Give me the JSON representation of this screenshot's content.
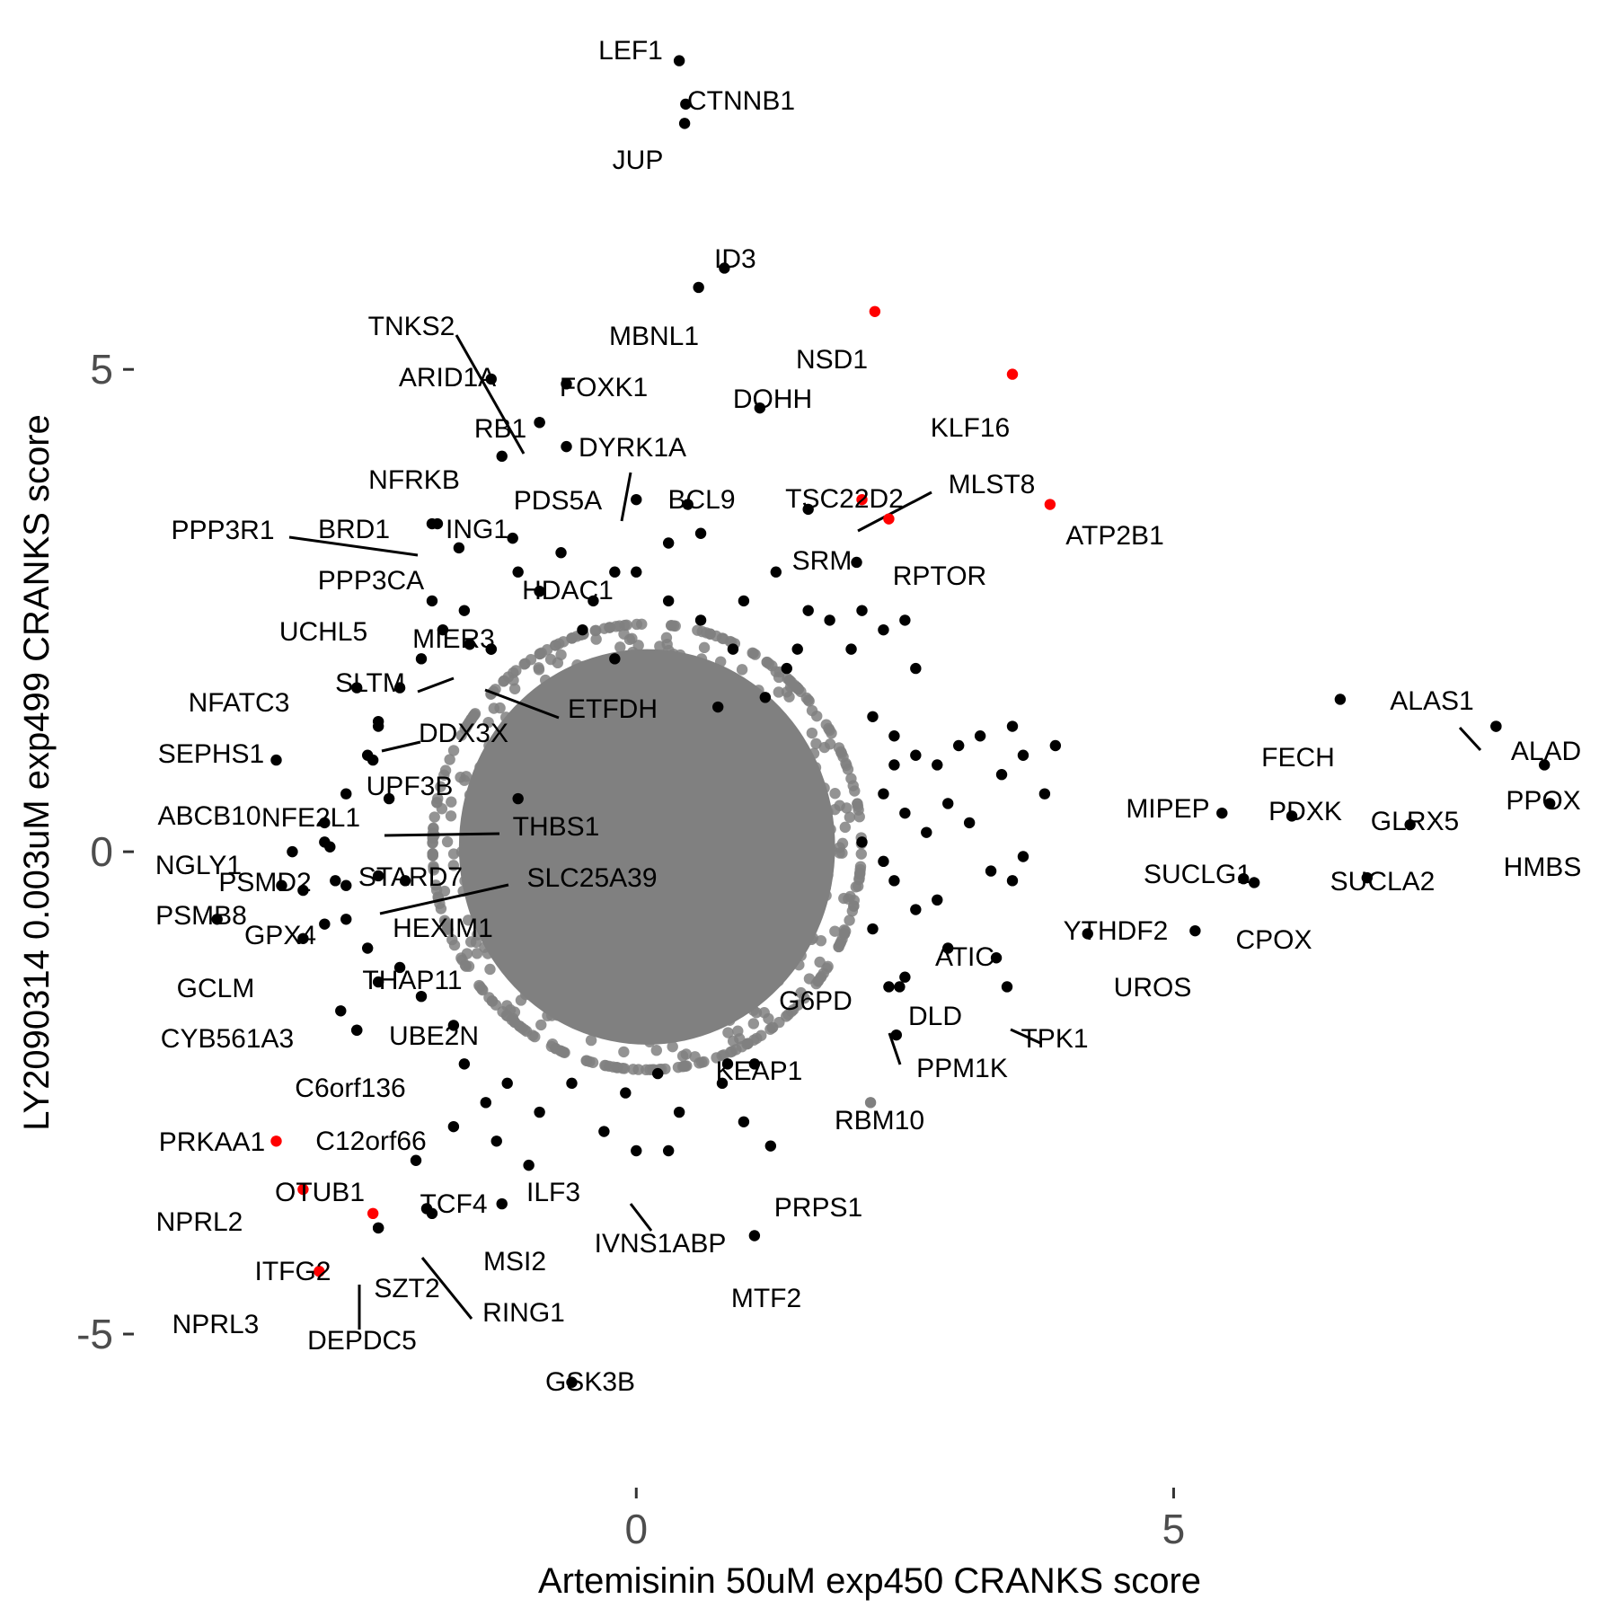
{
  "chart_data": {
    "type": "scatter",
    "xlabel": "Artemisinin 50uM exp450 CRANKS score",
    "ylabel": "LY2090314 0.003uM exp499 CRANKS score",
    "xlim": [
      -4.75,
      9.0
    ],
    "ylim": [
      -6.35,
      8.55
    ],
    "xticks": [
      {
        "value": 0,
        "label": "0"
      },
      {
        "value": 5,
        "label": "5"
      }
    ],
    "yticks": [
      {
        "value": -5,
        "label": "-5"
      },
      {
        "value": 0,
        "label": "0"
      },
      {
        "value": 5,
        "label": "5"
      }
    ],
    "grid": false,
    "colors": {
      "background": "#808080",
      "significant": "#000000",
      "highlight": "#ff0000"
    },
    "background_cloud": {
      "description_free": true,
      "center": [
        0.1,
        0.05
      ],
      "n": 1400
    },
    "labeled_points": [
      {
        "name": "LEF1",
        "x": 0.4,
        "y": 8.2,
        "color": "#000000"
      },
      {
        "name": "CTNNB1",
        "x": 0.46,
        "y": 7.75,
        "color": "#000000"
      },
      {
        "name": "JUP",
        "x": 0.45,
        "y": 7.55,
        "color": "#000000"
      },
      {
        "name": "ID3",
        "x": 0.82,
        "y": 6.05,
        "color": "#000000"
      },
      {
        "name": "MBNL1",
        "x": 0.58,
        "y": 5.85,
        "color": "#000000"
      },
      {
        "name": "NSD1",
        "x": 2.22,
        "y": 5.6,
        "color": "#ff0000"
      },
      {
        "name": "KLF16",
        "x": 3.5,
        "y": 4.95,
        "color": "#ff0000"
      },
      {
        "name": "DOHH",
        "x": 1.15,
        "y": 4.6,
        "color": "#000000"
      },
      {
        "name": "FOXK1",
        "x": -0.65,
        "y": 4.85,
        "color": "#000000"
      },
      {
        "name": "ARID1A",
        "x": -1.35,
        "y": 4.9,
        "color": "#000000"
      },
      {
        "name": "RB1",
        "x": -0.9,
        "y": 4.45,
        "color": "#000000"
      },
      {
        "name": "TNKS2",
        "x": -0.9,
        "y": 4.45,
        "color": "#000000"
      },
      {
        "name": "NFRKB",
        "x": -1.25,
        "y": 4.1,
        "color": "#000000"
      },
      {
        "name": "DYRK1A",
        "x": 0.0,
        "y": 3.65,
        "color": "#000000"
      },
      {
        "name": "PDS5A",
        "x": -0.65,
        "y": 4.2,
        "color": "#000000"
      },
      {
        "name": "BCL9",
        "x": 0.48,
        "y": 3.6,
        "color": "#000000"
      },
      {
        "name": "TSC22D2",
        "x": 1.6,
        "y": 3.55,
        "color": "#000000"
      },
      {
        "name": "MLST8",
        "x": 2.1,
        "y": 3.65,
        "color": "#ff0000"
      },
      {
        "name": "ATP2B1",
        "x": 3.85,
        "y": 3.6,
        "color": "#ff0000"
      },
      {
        "name": "RPTOR",
        "x": 2.35,
        "y": 3.45,
        "color": "#ff0000"
      },
      {
        "name": "SRM",
        "x": 2.05,
        "y": 3.0,
        "color": "#000000"
      },
      {
        "name": "ING1",
        "x": -1.15,
        "y": 3.25,
        "color": "#000000"
      },
      {
        "name": "BRD1",
        "x": -1.85,
        "y": 3.4,
        "color": "#000000"
      },
      {
        "name": "PPP3R1",
        "x": -1.9,
        "y": 3.4,
        "color": "#000000"
      },
      {
        "name": "PPP3CA",
        "x": -1.65,
        "y": 3.15,
        "color": "#000000"
      },
      {
        "name": "HDAC1",
        "x": -0.2,
        "y": 2.9,
        "color": "#000000"
      },
      {
        "name": "UCHL5",
        "x": -1.9,
        "y": 2.6,
        "color": "#000000"
      },
      {
        "name": "MIER3",
        "x": -1.35,
        "y": 2.1,
        "color": "#000000"
      },
      {
        "name": "SLTM",
        "x": -1.55,
        "y": 2.15,
        "color": "#000000"
      },
      {
        "name": "ETFDH",
        "x": -1.35,
        "y": 2.1,
        "color": "#000000"
      },
      {
        "name": "NFATC3",
        "x": -2.6,
        "y": 1.7,
        "color": "#000000"
      },
      {
        "name": "DDX3X",
        "x": -2.4,
        "y": 1.35,
        "color": "#000000"
      },
      {
        "name": "SEPHS1",
        "x": -3.35,
        "y": 0.95,
        "color": "#000000"
      },
      {
        "name": "UPF3B",
        "x": -2.45,
        "y": 0.95,
        "color": "#000000"
      },
      {
        "name": "NFE2L1",
        "x": -2.3,
        "y": 0.55,
        "color": "#000000"
      },
      {
        "name": "THBS1",
        "x": -1.1,
        "y": 0.55,
        "color": "#000000"
      },
      {
        "name": "ABCB10",
        "x": -2.9,
        "y": 0.3,
        "color": "#000000"
      },
      {
        "name": "NGLY1",
        "x": -2.85,
        "y": 0.05,
        "color": "#000000"
      },
      {
        "name": "PSMD2",
        "x": -3.3,
        "y": -0.35,
        "color": "#000000"
      },
      {
        "name": "STARD7",
        "x": -2.4,
        "y": -0.25,
        "color": "#000000"
      },
      {
        "name": "SLC25A39",
        "x": -2.15,
        "y": -0.3,
        "color": "#000000"
      },
      {
        "name": "PSMB8",
        "x": -3.9,
        "y": -0.7,
        "color": "#000000"
      },
      {
        "name": "GPX4",
        "x": -2.9,
        "y": -0.75,
        "color": "#000000"
      },
      {
        "name": "HEXIM1",
        "x": -2.7,
        "y": -0.35,
        "color": "#000000"
      },
      {
        "name": "GCLM",
        "x": -3.1,
        "y": -0.9,
        "color": "#000000"
      },
      {
        "name": "THAP11",
        "x": -2.4,
        "y": -1.35,
        "color": "#000000"
      },
      {
        "name": "CYB561A3",
        "x": -2.75,
        "y": -1.65,
        "color": "#000000"
      },
      {
        "name": "UBE2N",
        "x": -2.6,
        "y": -1.85,
        "color": "#000000"
      },
      {
        "name": "C6orf136",
        "x": -2.6,
        "y": -1.85,
        "color": "#000000"
      },
      {
        "name": "C12orf66",
        "x": -1.7,
        "y": -2.85,
        "color": "#000000"
      },
      {
        "name": "PRKAA1",
        "x": -3.35,
        "y": -3.0,
        "color": "#ff0000"
      },
      {
        "name": "OTUB1",
        "x": -2.05,
        "y": -3.2,
        "color": "#000000"
      },
      {
        "name": "NPRL2",
        "x": -3.1,
        "y": -3.5,
        "color": "#ff0000"
      },
      {
        "name": "TCF4",
        "x": -1.95,
        "y": -3.7,
        "color": "#000000"
      },
      {
        "name": "ILF3",
        "x": -1.0,
        "y": -3.25,
        "color": "#000000"
      },
      {
        "name": "MSI2",
        "x": -1.25,
        "y": -3.65,
        "color": "#000000"
      },
      {
        "name": "IVNS1ABP",
        "x": 0.0,
        "y": -3.1,
        "color": "#000000"
      },
      {
        "name": "ITFG2",
        "x": -2.45,
        "y": -3.75,
        "color": "#ff0000"
      },
      {
        "name": "SZT2",
        "x": -2.4,
        "y": -3.9,
        "color": "#000000"
      },
      {
        "name": "DEPDC5",
        "x": -2.4,
        "y": -3.9,
        "color": "#000000"
      },
      {
        "name": "RING1",
        "x": -1.9,
        "y": -3.75,
        "color": "#000000"
      },
      {
        "name": "NPRL3",
        "x": -2.95,
        "y": -4.35,
        "color": "#ff0000"
      },
      {
        "name": "GSK3B",
        "x": -0.6,
        "y": -5.5,
        "color": "#000000"
      },
      {
        "name": "MTF2",
        "x": 1.1,
        "y": -3.98,
        "color": "#000000"
      },
      {
        "name": "PRPS1",
        "x": 1.25,
        "y": -3.05,
        "color": "#000000"
      },
      {
        "name": "KEAP1",
        "x": 0.85,
        "y": -2.2,
        "color": "#000000"
      },
      {
        "name": "RBM10",
        "x": 2.18,
        "y": -2.6,
        "color": "#808080"
      },
      {
        "name": "PPM1K",
        "x": 2.42,
        "y": -1.9,
        "color": "#000000"
      },
      {
        "name": "DLD",
        "x": 2.45,
        "y": -1.4,
        "color": "#000000"
      },
      {
        "name": "G6PD",
        "x": 2.35,
        "y": -1.4,
        "color": "#000000"
      },
      {
        "name": "ATIC",
        "x": 3.35,
        "y": -1.1,
        "color": "#000000"
      },
      {
        "name": "TPK1",
        "x": 3.45,
        "y": -1.4,
        "color": "#000000"
      },
      {
        "name": "YTHDF2",
        "x": 4.2,
        "y": -0.85,
        "color": "#000000"
      },
      {
        "name": "UROS",
        "x": 5.2,
        "y": -0.82,
        "color": "#000000"
      },
      {
        "name": "CPOX",
        "x": 5.75,
        "y": -0.32,
        "color": "#000000"
      },
      {
        "name": "SUCLG1",
        "x": 5.65,
        "y": -0.28,
        "color": "#000000"
      },
      {
        "name": "SUCLA2",
        "x": 6.8,
        "y": -0.27,
        "color": "#000000"
      },
      {
        "name": "MIPEP",
        "x": 5.45,
        "y": 0.4,
        "color": "#000000"
      },
      {
        "name": "PDXK",
        "x": 6.1,
        "y": 0.37,
        "color": "#000000"
      },
      {
        "name": "GLRX5",
        "x": 7.2,
        "y": 0.28,
        "color": "#000000"
      },
      {
        "name": "FECH",
        "x": 6.55,
        "y": 1.58,
        "color": "#000000"
      },
      {
        "name": "ALAS1",
        "x": 8.0,
        "y": 1.3,
        "color": "#000000"
      },
      {
        "name": "ALAD",
        "x": 8.0,
        "y": 1.3,
        "color": "#000000"
      },
      {
        "name": "PPOX",
        "x": 8.45,
        "y": 0.9,
        "color": "#000000"
      },
      {
        "name": "HMBS",
        "x": 8.5,
        "y": 0.5,
        "color": "#000000"
      }
    ],
    "other_points": [
      [
        0.76,
        1.5
      ],
      [
        1.2,
        1.6
      ],
      [
        1.5,
        2.1
      ],
      [
        1.8,
        2.4
      ],
      [
        0.3,
        2.6
      ],
      [
        0.6,
        2.4
      ],
      [
        1.0,
        2.6
      ],
      [
        -0.2,
        2.0
      ],
      [
        -0.5,
        2.3
      ],
      [
        -0.9,
        2.7
      ],
      [
        -1.1,
        2.9
      ],
      [
        -0.7,
        3.1
      ],
      [
        0.3,
        3.2
      ],
      [
        0.6,
        3.3
      ],
      [
        1.3,
        2.9
      ],
      [
        1.6,
        2.5
      ],
      [
        2.0,
        2.1
      ],
      [
        2.3,
        2.3
      ],
      [
        2.5,
        2.4
      ],
      [
        2.6,
        1.9
      ],
      [
        2.1,
        2.5
      ],
      [
        2.2,
        1.4
      ],
      [
        2.4,
        1.2
      ],
      [
        2.6,
        1.0
      ],
      [
        2.8,
        0.9
      ],
      [
        3.0,
        1.1
      ],
      [
        3.2,
        1.2
      ],
      [
        3.4,
        0.8
      ],
      [
        3.6,
        1.0
      ],
      [
        3.8,
        0.6
      ],
      [
        3.9,
        1.1
      ],
      [
        3.5,
        1.3
      ],
      [
        2.3,
        0.6
      ],
      [
        2.5,
        0.4
      ],
      [
        2.7,
        0.2
      ],
      [
        2.9,
        0.5
      ],
      [
        3.1,
        0.3
      ],
      [
        3.3,
        -0.2
      ],
      [
        2.4,
        -0.3
      ],
      [
        2.6,
        -0.6
      ],
      [
        2.2,
        -0.8
      ],
      [
        2.8,
        -0.5
      ],
      [
        3.5,
        -0.3
      ],
      [
        3.6,
        -0.05
      ],
      [
        2.3,
        -0.1
      ],
      [
        2.1,
        0.1
      ],
      [
        2.4,
        0.9
      ],
      [
        2.9,
        -1.0
      ],
      [
        2.5,
        -1.3
      ],
      [
        0.2,
        -2.3
      ],
      [
        -0.1,
        -2.5
      ],
      [
        0.4,
        -2.7
      ],
      [
        0.8,
        -2.4
      ],
      [
        1.0,
        -2.8
      ],
      [
        -0.6,
        -2.4
      ],
      [
        -0.9,
        -2.7
      ],
      [
        -1.2,
        -2.4
      ],
      [
        -1.4,
        -2.6
      ],
      [
        -1.6,
        -2.2
      ],
      [
        -1.3,
        -3.0
      ],
      [
        -0.3,
        -2.9
      ],
      [
        0.3,
        -3.1
      ],
      [
        1.1,
        -2.2
      ],
      [
        -1.7,
        -1.8
      ],
      [
        -2.0,
        -1.5
      ],
      [
        -2.2,
        -1.2
      ],
      [
        -2.5,
        -1.0
      ],
      [
        -2.7,
        -0.7
      ],
      [
        -2.8,
        -0.3
      ],
      [
        -2.9,
        0.1
      ],
      [
        -2.7,
        0.6
      ],
      [
        -2.5,
        1.0
      ],
      [
        -2.4,
        1.3
      ],
      [
        -2.2,
        1.7
      ],
      [
        -2.0,
        2.0
      ],
      [
        -1.8,
        2.3
      ],
      [
        -1.6,
        2.5
      ],
      [
        -3.1,
        -0.4
      ],
      [
        -3.2,
        0.0
      ],
      [
        0.9,
        2.1
      ],
      [
        0.0,
        2.9
      ],
      [
        -0.4,
        2.6
      ],
      [
        1.4,
        1.9
      ]
    ]
  }
}
